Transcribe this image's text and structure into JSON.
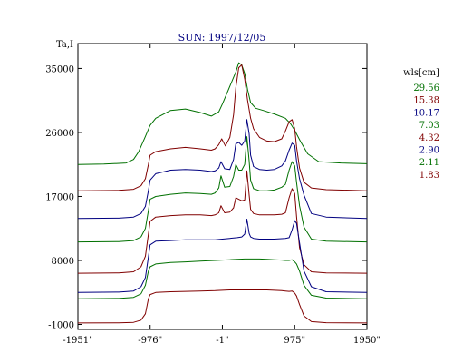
{
  "chart_data": {
    "type": "line",
    "title": "SUN: 1997/12/05",
    "ylabel": "Ta,I",
    "xlabel": "",
    "x_ticks": [
      -1951,
      -976,
      -1,
      975,
      1950
    ],
    "x_tick_labels": [
      "-1951\"",
      "-976\"",
      "-1\"",
      "975\"",
      "1950\""
    ],
    "y_ticks": [
      -1000,
      8000,
      17000,
      26000,
      35000
    ],
    "xlim": [
      -1951,
      1950
    ],
    "ylim": [
      -1700,
      38500
    ],
    "grid": false,
    "legend_title": "wls[cm]",
    "legend_placement": "right",
    "series": [
      {
        "name": "29.56",
        "color": "#007000",
        "x": [
          -1951,
          -1600,
          -1300,
          -1200,
          -1130,
          -1050,
          -976,
          -900,
          -700,
          -500,
          -300,
          -150,
          -50,
          0,
          80,
          180,
          220,
          260,
          300,
          340,
          380,
          450,
          550,
          700,
          850,
          920,
          975,
          1050,
          1150,
          1300,
          1600,
          1950
        ],
        "values": [
          21500,
          21550,
          21700,
          22200,
          23300,
          25200,
          27000,
          28000,
          29100,
          29300,
          28800,
          28300,
          28900,
          30000,
          32000,
          34500,
          35800,
          35500,
          34300,
          32000,
          30200,
          29400,
          29100,
          28600,
          28000,
          27200,
          26300,
          24800,
          23000,
          21900,
          21700,
          21600
        ]
      },
      {
        "name": "15.38",
        "color": "#800000",
        "x": [
          -1951,
          -1400,
          -1200,
          -1100,
          -1040,
          -1000,
          -976,
          -900,
          -700,
          -500,
          -300,
          -150,
          -100,
          -50,
          -10,
          40,
          100,
          150,
          180,
          220,
          260,
          300,
          340,
          380,
          420,
          500,
          600,
          700,
          800,
          850,
          900,
          940,
          975,
          1000,
          1040,
          1100,
          1200,
          1400,
          1950
        ],
        "values": [
          17800,
          17850,
          18000,
          18500,
          19500,
          21500,
          22800,
          23300,
          23700,
          23900,
          23700,
          23500,
          23700,
          24300,
          25100,
          24100,
          25300,
          28500,
          32300,
          35100,
          35500,
          33500,
          30500,
          28000,
          26500,
          25300,
          24800,
          24700,
          25100,
          26200,
          27500,
          27800,
          26500,
          24000,
          21000,
          19000,
          18200,
          17950,
          17800
        ]
      },
      {
        "name": "10.17",
        "color": "#000080",
        "x": [
          -1951,
          -1400,
          -1200,
          -1100,
          -1040,
          -1000,
          -976,
          -900,
          -700,
          -500,
          -300,
          -150,
          -100,
          -50,
          -20,
          30,
          100,
          150,
          180,
          220,
          260,
          300,
          330,
          360,
          380,
          420,
          500,
          600,
          700,
          800,
          850,
          900,
          940,
          975,
          1000,
          1040,
          1100,
          1200,
          1400,
          1950
        ],
        "values": [
          13900,
          13950,
          14100,
          14600,
          15600,
          17800,
          19300,
          20200,
          20700,
          20800,
          20700,
          20500,
          20600,
          21000,
          21900,
          20900,
          20800,
          22200,
          24400,
          24600,
          24200,
          24800,
          27800,
          25800,
          22800,
          21200,
          20800,
          20700,
          20800,
          21300,
          22000,
          23500,
          24500,
          24200,
          22000,
          19500,
          17200,
          14600,
          14100,
          13900
        ]
      },
      {
        "name": "7.03",
        "color": "#007000",
        "x": [
          -1951,
          -1400,
          -1200,
          -1100,
          -1040,
          -1000,
          -976,
          -900,
          -700,
          -500,
          -300,
          -150,
          -100,
          -50,
          -20,
          30,
          100,
          150,
          180,
          220,
          260,
          300,
          330,
          360,
          380,
          420,
          500,
          600,
          700,
          800,
          850,
          900,
          940,
          975,
          1000,
          1040,
          1100,
          1200,
          1400,
          1950
        ],
        "values": [
          10600,
          10650,
          10800,
          11300,
          12500,
          15000,
          16600,
          17000,
          17300,
          17500,
          17400,
          17300,
          17500,
          18200,
          19900,
          18300,
          18400,
          19800,
          21500,
          20700,
          20700,
          21500,
          25400,
          22000,
          19300,
          18100,
          17800,
          17800,
          17900,
          18300,
          18700,
          20700,
          21900,
          21300,
          19000,
          15700,
          12700,
          11000,
          10700,
          10600
        ]
      },
      {
        "name": "4.32",
        "color": "#800000",
        "x": [
          -1951,
          -1400,
          -1200,
          -1100,
          -1040,
          -1000,
          -976,
          -900,
          -700,
          -500,
          -300,
          -150,
          -100,
          -50,
          -20,
          30,
          100,
          150,
          180,
          220,
          260,
          300,
          330,
          360,
          380,
          420,
          500,
          600,
          700,
          800,
          850,
          900,
          940,
          975,
          1000,
          1040,
          1100,
          1200,
          1400,
          1950
        ],
        "values": [
          6200,
          6250,
          6400,
          7100,
          8600,
          11700,
          13500,
          14100,
          14300,
          14400,
          14400,
          14300,
          14400,
          14700,
          15700,
          14700,
          14800,
          15400,
          16800,
          16600,
          16400,
          16500,
          20600,
          17200,
          15200,
          14600,
          14400,
          14400,
          14400,
          14500,
          14700,
          16800,
          18100,
          17400,
          14200,
          9800,
          7400,
          6400,
          6250,
          6200
        ]
      },
      {
        "name": "2.90",
        "color": "#000080",
        "x": [
          -1951,
          -1400,
          -1200,
          -1100,
          -1040,
          -1000,
          -976,
          -900,
          -700,
          -500,
          -300,
          -100,
          0,
          100,
          200,
          260,
          300,
          330,
          360,
          380,
          420,
          500,
          700,
          850,
          900,
          940,
          975,
          1000,
          1040,
          1100,
          1200,
          1400,
          1950
        ],
        "values": [
          3500,
          3550,
          3700,
          4300,
          5600,
          8500,
          10200,
          10700,
          10800,
          10900,
          10900,
          10900,
          11000,
          11100,
          11200,
          11300,
          11700,
          13800,
          11800,
          11300,
          11100,
          11000,
          11000,
          11100,
          11200,
          12300,
          13600,
          13200,
          10500,
          6500,
          4300,
          3600,
          3500
        ]
      },
      {
        "name": "2.11",
        "color": "#007000",
        "x": [
          -1951,
          -1400,
          -1200,
          -1100,
          -1040,
          -1000,
          -976,
          -900,
          -700,
          -500,
          -300,
          -100,
          0,
          100,
          200,
          300,
          400,
          500,
          600,
          700,
          800,
          850,
          900,
          940,
          975,
          1000,
          1040,
          1100,
          1200,
          1400,
          1950
        ],
        "values": [
          2600,
          2650,
          2800,
          3300,
          4500,
          6500,
          7100,
          7500,
          7700,
          7800,
          7900,
          8000,
          8050,
          8100,
          8150,
          8200,
          8200,
          8200,
          8150,
          8100,
          8050,
          8000,
          8000,
          8100,
          7800,
          7500,
          6500,
          4500,
          3100,
          2700,
          2600
        ]
      },
      {
        "name": "1.83",
        "color": "#800000",
        "x": [
          -1951,
          -1400,
          -1200,
          -1100,
          -1040,
          -1000,
          -976,
          -900,
          -700,
          -500,
          -300,
          -100,
          0,
          100,
          200,
          300,
          400,
          500,
          600,
          700,
          800,
          850,
          900,
          940,
          975,
          1000,
          1040,
          1100,
          1200,
          1400,
          1950
        ],
        "values": [
          -800,
          -780,
          -700,
          -400,
          500,
          2600,
          3200,
          3500,
          3600,
          3650,
          3700,
          3750,
          3800,
          3850,
          3850,
          3850,
          3850,
          3850,
          3850,
          3800,
          3750,
          3700,
          3650,
          3700,
          3400,
          3000,
          1800,
          200,
          -600,
          -750,
          -800
        ]
      }
    ]
  }
}
